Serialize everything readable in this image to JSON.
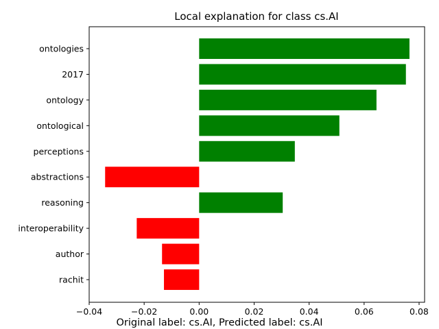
{
  "chart_data": {
    "type": "bar",
    "orientation": "horizontal",
    "title": "Local explanation for class cs.AI",
    "xlabel": "",
    "ylabel": "",
    "caption": "Original label: cs.AI, Predicted label: cs.AI",
    "xlim": [
      -0.04,
      0.082
    ],
    "xticks": [
      -0.04,
      -0.02,
      0.0,
      0.02,
      0.04,
      0.06,
      0.08
    ],
    "xtick_labels": [
      "−0.04",
      "−0.02",
      "0.00",
      "0.02",
      "0.04",
      "0.06",
      "0.08"
    ],
    "grid": false,
    "positive_color": "#008000",
    "negative_color": "#ff0000",
    "categories": [
      "ontologies",
      "2017",
      "ontology",
      "ontological",
      "perceptions",
      "abstractions",
      "reasoning",
      "interoperability",
      "author",
      "rachit"
    ],
    "values": [
      0.0765,
      0.0752,
      0.0645,
      0.051,
      0.0348,
      -0.0342,
      0.0304,
      -0.0227,
      -0.0135,
      -0.0128
    ]
  }
}
